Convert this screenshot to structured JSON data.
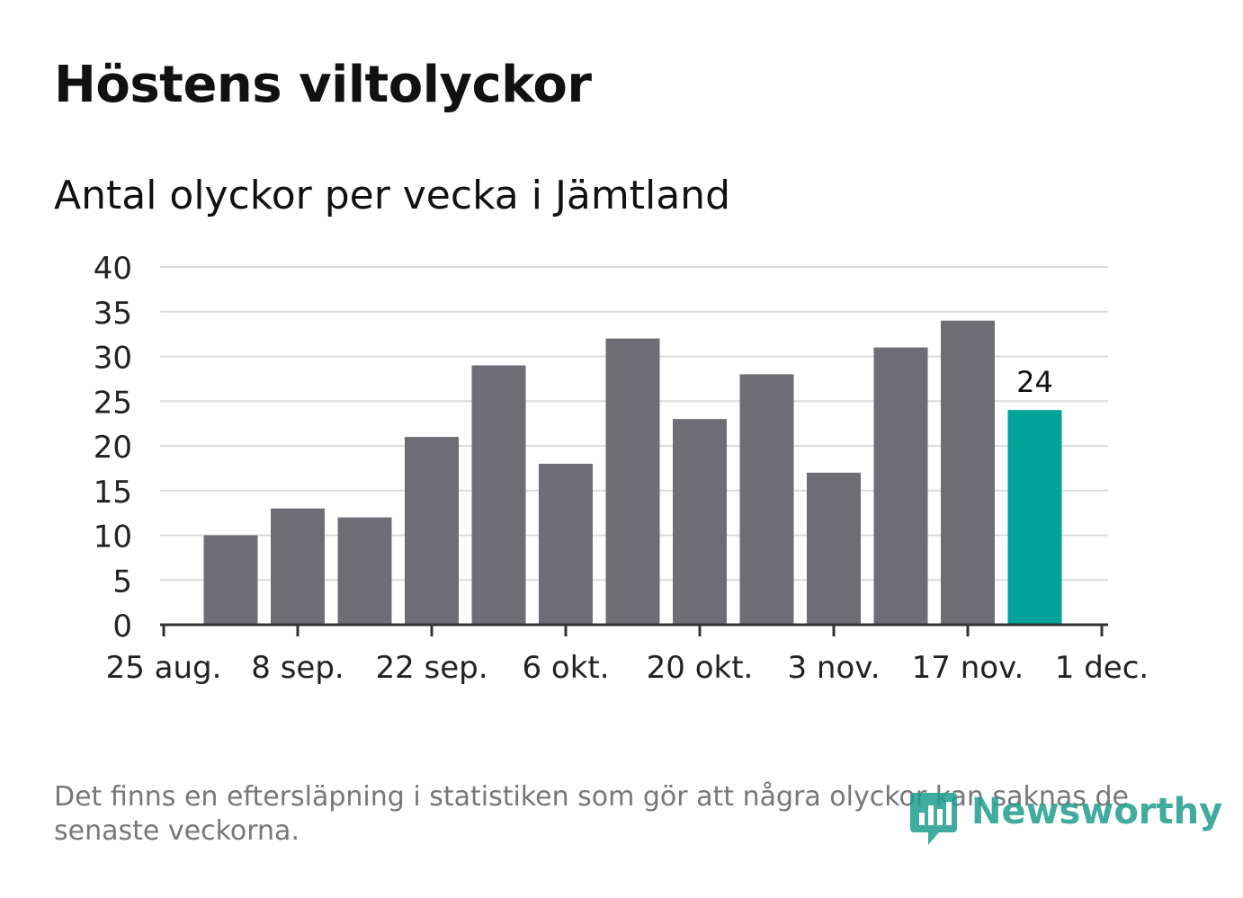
{
  "title": "Höstens viltolyckor",
  "subtitle": "Antal olyckor per vecka i Jämtland",
  "footnote": "Det finns en eftersläpning i statistiken som gör att några olyckor kan saknas de senaste veckorna.",
  "brand": {
    "name": "Newsworthy",
    "icon": "newsworthy-logo-icon"
  },
  "colors": {
    "bar": "#6e6d74",
    "highlight": "#00a39a",
    "grid": "#dcdcdc",
    "axis": "#333333"
  },
  "chart_data": {
    "type": "bar",
    "title": "Höstens viltolyckor",
    "subtitle": "Antal olyckor per vecka i Jämtland",
    "xlabel": "",
    "ylabel": "",
    "ylim": [
      0,
      40
    ],
    "yticks": [
      0,
      5,
      10,
      15,
      20,
      25,
      30,
      35,
      40
    ],
    "xticks": [
      "25 aug.",
      "8 sep.",
      "22 sep.",
      "6 okt.",
      "20 okt.",
      "3 nov.",
      "17 nov.",
      "1 dec."
    ],
    "values": [
      10,
      13,
      12,
      21,
      29,
      18,
      32,
      23,
      28,
      17,
      31,
      34,
      24
    ],
    "highlight_index": 12,
    "highlight_label": "24",
    "grid": true
  }
}
